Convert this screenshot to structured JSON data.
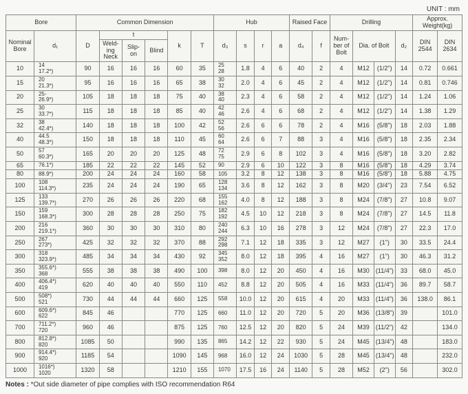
{
  "unit_label": "UNIT : mm",
  "headers": {
    "bore": "Bore",
    "common_dimension": "Common Dimension",
    "hub": "Hub",
    "raised_face": "Raised Face",
    "drilling": "Drilling",
    "approx_weight": "Approx. Weight(kg)",
    "nominal_bore": "Nominal\nBore",
    "d1": "d₁",
    "D": "D",
    "t": "t",
    "welding_neck": "Weld-\ning\nNeck",
    "slip_on": "Slip-\non",
    "blind": "Blind",
    "k": "k",
    "T": "T",
    "d3": "d₃",
    "s": "s",
    "r": "r",
    "a": "a",
    "d4": "d₄",
    "f": "f",
    "num_bolt": "Num-\nber\nof\nBolt",
    "dia_bolt": "Dia. of Bolt",
    "d2": "d₂",
    "din2544": "DIN\n2544",
    "din2634": "DIN\n2634"
  },
  "rows": [
    {
      "nb": "10",
      "d1": "14\n17.2*)",
      "D": "90",
      "wn": "16",
      "so": "16",
      "bl": "16",
      "k": "60",
      "T": "35",
      "d3": "25\n28",
      "s": "1.8",
      "r": "4",
      "a": "6",
      "d4": "40",
      "f": "2",
      "nb2": "4",
      "dia": "M12",
      "dia2": "(1/2\")",
      "d2": "14",
      "w1": "0.72",
      "w2": "0.661"
    },
    {
      "nb": "15",
      "d1": "20\n21.3*)",
      "D": "95",
      "wn": "16",
      "so": "16",
      "bl": "16",
      "k": "65",
      "T": "38",
      "d3": "30\n32",
      "s": "2.0",
      "r": "4",
      "a": "6",
      "d4": "45",
      "f": "2",
      "nb2": "4",
      "dia": "M12",
      "dia2": "(1/2\")",
      "d2": "14",
      "w1": "0.81",
      "w2": "0.746"
    },
    {
      "nb": "20",
      "d1": "25-\n26.9*)",
      "D": "105",
      "wn": "18",
      "so": "18",
      "bl": "18",
      "k": "75",
      "T": "40",
      "d3": "38\n40",
      "s": "2.3",
      "r": "4",
      "a": "6",
      "d4": "58",
      "f": "2",
      "nb2": "4",
      "dia": "M12",
      "dia2": "(1/2\")",
      "d2": "14",
      "w1": "1.24",
      "w2": "1.06"
    },
    {
      "nb": "25",
      "d1": "30\n33.7*)",
      "D": "115",
      "wn": "18",
      "so": "18",
      "bl": "18",
      "k": "85",
      "T": "40",
      "d3": "42\n46",
      "s": "2.6",
      "r": "4",
      "a": "6",
      "d4": "68",
      "f": "2",
      "nb2": "4",
      "dia": "M12",
      "dia2": "(1/2\")",
      "d2": "14",
      "w1": "1.38",
      "w2": "1.29",
      "break": true
    },
    {
      "nb": "32",
      "d1": "38\n42.4*)",
      "D": "140",
      "wn": "18",
      "so": "18",
      "bl": "18",
      "k": "100",
      "T": "42",
      "d3": "52\n56",
      "s": "2.6",
      "r": "6",
      "a": "6",
      "d4": "78",
      "f": "2",
      "nb2": "4",
      "dia": "M16",
      "dia2": "(5/8\")",
      "d2": "18",
      "w1": "2.03",
      "w2": "1.88"
    },
    {
      "nb": "40",
      "d1": "44.5\n48.3*)",
      "D": "150",
      "wn": "18",
      "so": "18",
      "bl": "18",
      "k": "110",
      "T": "45",
      "d3": "60\n64",
      "s": "2.6",
      "r": "6",
      "a": "7",
      "d4": "88",
      "f": "3",
      "nb2": "4",
      "dia": "M16",
      "dia2": "(5/8\")",
      "d2": "18",
      "w1": "2.35",
      "w2": "2.34"
    },
    {
      "nb": "50",
      "d1": "57\n60.3*)",
      "D": "165",
      "wn": "20",
      "so": "20",
      "bl": "20",
      "k": "125",
      "T": "48",
      "d3": "72\n75",
      "s": "2.9",
      "r": "6",
      "a": "8",
      "d4": "102",
      "f": "3",
      "nb2": "4",
      "dia": "M16",
      "dia2": "(5/8\")",
      "d2": "18",
      "w1": "3.20",
      "w2": "2.82",
      "break": true
    },
    {
      "nb": "65",
      "d1": "76.1*)",
      "D": "185",
      "wn": "22",
      "so": "22",
      "bl": "22",
      "k": "145",
      "T": "52",
      "d3": "90",
      "s": "2.9",
      "r": "6",
      "a": "10",
      "d4": "122",
      "f": "3",
      "nb2": "8",
      "dia": "M16",
      "dia2": "(5/8\")",
      "d2": "18",
      "w1": "4.29",
      "w2": "3.74"
    },
    {
      "nb": "80",
      "d1": "88.9*)",
      "D": "200",
      "wn": "24",
      "so": "24",
      "bl": "24",
      "k": "160",
      "T": "58",
      "d3": "105",
      "s": "3.2",
      "r": "8",
      "a": "12",
      "d4": "138",
      "f": "3",
      "nb2": "8",
      "dia": "M16",
      "dia2": "(5/8\")",
      "d2": "18",
      "w1": "5.88",
      "w2": "4.75"
    },
    {
      "nb": "100",
      "d1": "108\n114.3*)",
      "D": "235",
      "wn": "24",
      "so": "24",
      "bl": "24",
      "k": "190",
      "T": "65",
      "d3": "128\n134",
      "s": "3.6",
      "r": "8",
      "a": "12",
      "d4": "162",
      "f": "3",
      "nb2": "8",
      "dia": "M20",
      "dia2": "(3/4\")",
      "d2": "23",
      "w1": "7.54",
      "w2": "6.52",
      "break": true
    },
    {
      "nb": "125",
      "d1": "133\n139.7*)",
      "D": "270",
      "wn": "26",
      "so": "26",
      "bl": "26",
      "k": "220",
      "T": "68",
      "d3": "155\n162",
      "s": "4.0",
      "r": "8",
      "a": "12",
      "d4": "188",
      "f": "3",
      "nb2": "8",
      "dia": "M24",
      "dia2": "(7/8\")",
      "d2": "27",
      "w1": "10.8",
      "w2": "9.07"
    },
    {
      "nb": "150",
      "d1": "159\n168.3*)",
      "D": "300",
      "wn": "28",
      "so": "28",
      "bl": "28",
      "k": "250",
      "T": "75",
      "d3": "182\n192",
      "s": "4.5",
      "r": "10",
      "a": "12",
      "d4": "218",
      "f": "3",
      "nb2": "8",
      "dia": "M24",
      "dia2": "(7/8\")",
      "d2": "27",
      "w1": "14.5",
      "w2": "11.8"
    },
    {
      "nb": "200",
      "d1": "216\n219.1*)",
      "D": "360",
      "wn": "30",
      "so": "30",
      "bl": "30",
      "k": "310",
      "T": "80",
      "d3": "240\n244",
      "s": "6.3",
      "r": "10",
      "a": "16",
      "d4": "278",
      "f": "3",
      "nb2": "12",
      "dia": "M24",
      "dia2": "(7/8\")",
      "d2": "27",
      "w1": "22.3",
      "w2": "17.0",
      "break": true
    },
    {
      "nb": "250",
      "d1": "267\n273*)",
      "D": "425",
      "wn": "32",
      "so": "32",
      "bl": "32",
      "k": "370",
      "T": "88",
      "d3": "292\n298",
      "s": "7.1",
      "r": "12",
      "a": "18",
      "d4": "335",
      "f": "3",
      "nb2": "12",
      "dia": "M27",
      "dia2": "(1\")",
      "d2": "30",
      "w1": "33.5",
      "w2": "24.4"
    },
    {
      "nb": "300",
      "d1": "318\n323.9*)",
      "D": "485",
      "wn": "34",
      "so": "34",
      "bl": "34",
      "k": "430",
      "T": "92",
      "d3": "345\n352",
      "s": "8.0",
      "r": "12",
      "a": "18",
      "d4": "395",
      "f": "4",
      "nb2": "16",
      "dia": "M27",
      "dia2": "(1\")",
      "d2": "30",
      "w1": "46.3",
      "w2": "31.2"
    },
    {
      "nb": "350",
      "d1": "355.6*)\n368",
      "D": "555",
      "wn": "38",
      "so": "38",
      "bl": "38",
      "k": "490",
      "T": "100",
      "d3": "398",
      "s": "8.0",
      "r": "12",
      "a": "20",
      "d4": "450",
      "f": "4",
      "nb2": "16",
      "dia": "M30",
      "dia2": "(11/4\")",
      "d2": "33",
      "w1": "68.0",
      "w2": "45.0",
      "break": true
    },
    {
      "nb": "400",
      "d1": "406.4*)\n419",
      "D": "620",
      "wn": "40",
      "so": "40",
      "bl": "40",
      "k": "550",
      "T": "110",
      "d3": "452",
      "s": "8.8",
      "r": "12",
      "a": "20",
      "d4": "505",
      "f": "4",
      "nb2": "16",
      "dia": "M33",
      "dia2": "(11/4\")",
      "d2": "36",
      "w1": "89.7",
      "w2": "58.7"
    },
    {
      "nb": "500",
      "d1": "508*)\n521",
      "D": "730",
      "wn": "44",
      "so": "44",
      "bl": "44",
      "k": "660",
      "T": "125",
      "d3": "558",
      "s": "10.0",
      "r": "12",
      "a": "20",
      "d4": "615",
      "f": "4",
      "nb2": "20",
      "dia": "M33",
      "dia2": "(11/4\")",
      "d2": "36",
      "w1": "138.0",
      "w2": "86.1"
    },
    {
      "nb": "600",
      "d1": "609.6*)\n622",
      "D": "845",
      "wn": "46",
      "so": "",
      "bl": "",
      "k": "770",
      "T": "125",
      "d3": "660",
      "s": "11.0",
      "r": "12",
      "a": "20",
      "d4": "720",
      "f": "5",
      "nb2": "20",
      "dia": "M36",
      "dia2": "(13/8\")",
      "d2": "39",
      "w1": "",
      "w2": "101.0",
      "break": true
    },
    {
      "nb": "700",
      "d1": "711.2*)\n720",
      "D": "960",
      "wn": "46",
      "so": "",
      "bl": "",
      "k": "875",
      "T": "125",
      "d3": "760",
      "s": "12.5",
      "r": "12",
      "a": "20",
      "d4": "820",
      "f": "5",
      "nb2": "24",
      "dia": "M39",
      "dia2": "(11/2\")",
      "d2": "42",
      "w1": "",
      "w2": "134.0"
    },
    {
      "nb": "800",
      "d1": "812.8*)\n820",
      "D": "1085",
      "wn": "50",
      "so": "",
      "bl": "",
      "k": "990",
      "T": "135",
      "d3": "865",
      "s": "14.2",
      "r": "12",
      "a": "22",
      "d4": "930",
      "f": "5",
      "nb2": "24",
      "dia": "M45",
      "dia2": "(13/4\")",
      "d2": "48",
      "w1": "",
      "w2": "183.0"
    },
    {
      "nb": "900",
      "d1": "914.4*)\n920",
      "D": "1185",
      "wn": "54",
      "so": "",
      "bl": "",
      "k": "1090",
      "T": "145",
      "d3": "968",
      "s": "16.0",
      "r": "12",
      "a": "24",
      "d4": "1030",
      "f": "5",
      "nb2": "28",
      "dia": "M45",
      "dia2": "(13/4\")",
      "d2": "48",
      "w1": "",
      "w2": "232.0",
      "break": true
    },
    {
      "nb": "1000",
      "d1": "1016*)\n1020",
      "D": "1320",
      "wn": "58",
      "so": "",
      "bl": "",
      "k": "1210",
      "T": "155",
      "d3": "1070",
      "s": "17.5",
      "r": "16",
      "a": "24",
      "d4": "1140",
      "f": "5",
      "nb2": "28",
      "dia": "M52",
      "dia2": "(2\")",
      "d2": "56",
      "w1": "",
      "w2": "302.0"
    }
  ],
  "notes_label": "Notes :",
  "notes_text": " *Out side diameter of pipe complies with ISO recommendation R64",
  "style": {
    "background_color": "#f5f5f2",
    "border_color": "#888888",
    "text_color": "#333333",
    "font_size_body": 9,
    "font_size_header": 9
  }
}
